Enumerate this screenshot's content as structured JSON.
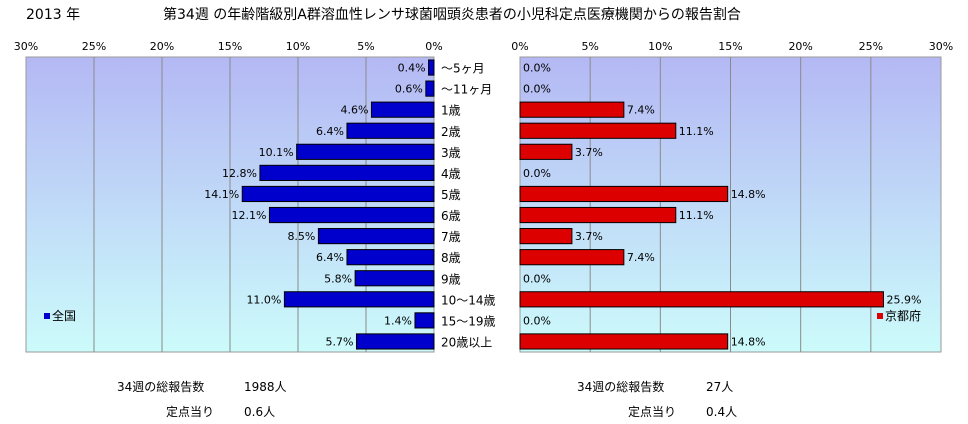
{
  "title": {
    "year": "2013 年",
    "main": "第34週 の年齢階級別A群溶血性レンサ球菌咽頭炎患者の小児科定点医療機関からの報告割合"
  },
  "chart_data": {
    "type": "bar",
    "categories": [
      "～5ヶ月",
      "～11ヶ月",
      "1歳",
      "2歳",
      "3歳",
      "4歳",
      "5歳",
      "6歳",
      "7歳",
      "8歳",
      "9歳",
      "10～14歳",
      "15～19歳",
      "20歳以上"
    ],
    "series": [
      {
        "name": "全国",
        "color": "#0000cc",
        "values": [
          0.4,
          0.6,
          4.6,
          6.4,
          10.1,
          12.8,
          14.1,
          12.1,
          8.5,
          6.4,
          5.8,
          11.0,
          1.4,
          5.7
        ],
        "labels": [
          "0.4%",
          "0.6%",
          "4.6%",
          "6.4%",
          "10.1%",
          "12.8%",
          "14.1%",
          "12.1%",
          "8.5%",
          "6.4%",
          "5.8%",
          "11.0%",
          "1.4%",
          "5.7%"
        ]
      },
      {
        "name": "京都府",
        "color": "#dd0000",
        "values": [
          0.0,
          0.0,
          7.4,
          11.1,
          3.7,
          0.0,
          14.8,
          11.1,
          3.7,
          7.4,
          0.0,
          25.9,
          0.0,
          14.8
        ],
        "labels": [
          "0.0%",
          "0.0%",
          "7.4%",
          "11.1%",
          "3.7%",
          "0.0%",
          "14.8%",
          "11.1%",
          "3.7%",
          "7.4%",
          "0.0%",
          "25.9%",
          "0.0%",
          "14.8%"
        ]
      }
    ],
    "left_axis_ticks": [
      "30%",
      "25%",
      "20%",
      "15%",
      "10%",
      "5%",
      "0%"
    ],
    "right_axis_ticks": [
      "0%",
      "5%",
      "10%",
      "15%",
      "20%",
      "25%",
      "30%"
    ],
    "xlim": [
      0,
      30
    ],
    "grid": true,
    "legend": [
      "全国 bottom-left of left panel",
      "京都府 bottom-right of right panel"
    ]
  },
  "stats": {
    "national": {
      "total_label": "34週の総報告数",
      "total_value": "1988人",
      "per_label": "定点当り",
      "per_value": "0.6人"
    },
    "kyoto": {
      "total_label": "34週の総報告数",
      "total_value": "27人",
      "per_label": "定点当り",
      "per_value": "0.4人"
    }
  }
}
